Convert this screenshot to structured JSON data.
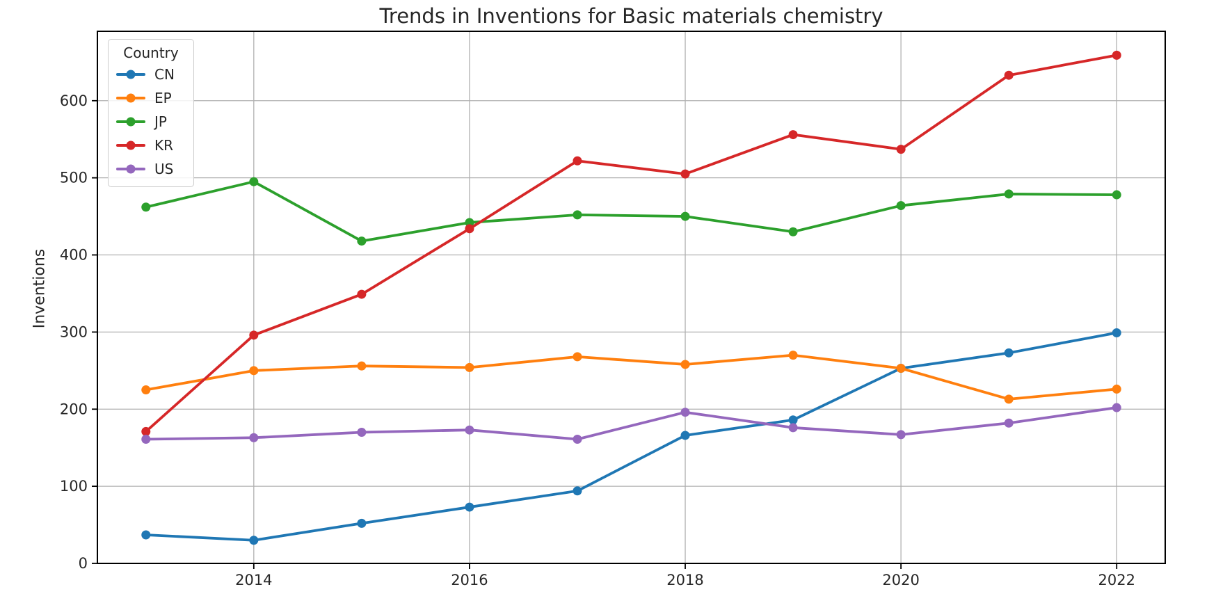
{
  "chart_data": {
    "type": "line",
    "title": "Trends in Inventions for Basic materials chemistry",
    "xlabel": "",
    "ylabel": "Inventions",
    "legend_title": "Country",
    "legend_position": "upper left",
    "grid": true,
    "x": [
      2013,
      2014,
      2015,
      2016,
      2017,
      2018,
      2019,
      2020,
      2021,
      2022
    ],
    "series": [
      {
        "name": "CN",
        "color": "#1f77b4",
        "values": [
          37,
          30,
          52,
          73,
          94,
          166,
          186,
          253,
          273,
          299
        ]
      },
      {
        "name": "EP",
        "color": "#ff7f0e",
        "values": [
          225,
          250,
          256,
          254,
          268,
          258,
          270,
          253,
          213,
          226
        ]
      },
      {
        "name": "JP",
        "color": "#2ca02c",
        "values": [
          462,
          495,
          418,
          442,
          452,
          450,
          430,
          464,
          479,
          478
        ]
      },
      {
        "name": "KR",
        "color": "#d62728",
        "values": [
          171,
          296,
          349,
          434,
          522,
          505,
          556,
          537,
          633,
          659
        ]
      },
      {
        "name": "US",
        "color": "#9467bd",
        "values": [
          161,
          163,
          170,
          173,
          161,
          196,
          176,
          167,
          182,
          202
        ]
      }
    ],
    "xticks": [
      2014,
      2016,
      2018,
      2020,
      2022
    ],
    "yticks": [
      0,
      100,
      200,
      300,
      400,
      500,
      600
    ],
    "xlim": [
      2012.55,
      2022.45
    ],
    "ylim": [
      0,
      690
    ],
    "colors": {
      "grid": "#b0b0b0",
      "spine": "#000000",
      "text": "#262626",
      "background": "#ffffff"
    }
  }
}
